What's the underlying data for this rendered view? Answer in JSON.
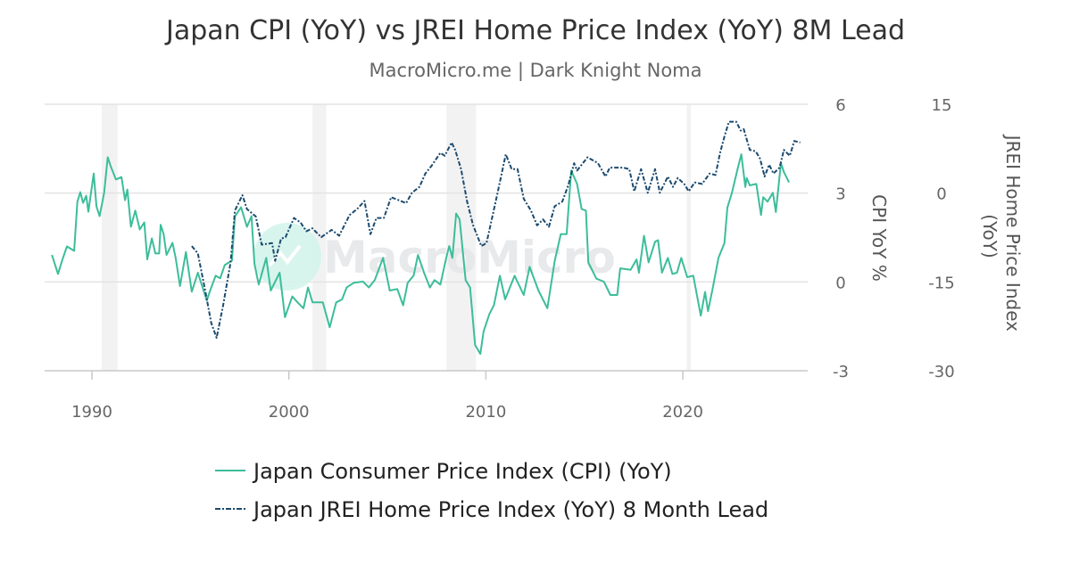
{
  "chart_data": {
    "type": "line",
    "title": "Japan CPI (YoY) vs JREI Home Price Index (YoY) 8M Lead",
    "subtitle": "MacroMicro.me | Dark Knight Noma",
    "watermark": "MacroMicro",
    "x_axis": {
      "ticks": [
        "1990",
        "2000",
        "2010",
        "2020"
      ],
      "range": [
        1987.6,
        2026.4
      ]
    },
    "y_axis_left": {
      "label": "CPI YoY %",
      "ticks": [
        "6",
        "3",
        "0",
        "-3"
      ],
      "range": [
        -3,
        6
      ]
    },
    "y_axis_right": {
      "label": "JREI Home Price Index (YoY)",
      "ticks": [
        "15",
        "0",
        "-15",
        "-30"
      ],
      "range": [
        -30,
        15
      ]
    },
    "grid": true,
    "legend_position": "bottom",
    "recession_bands": [
      [
        1990.5,
        1991.3
      ],
      [
        2001.2,
        2001.9
      ],
      [
        2008.0,
        2009.5
      ],
      [
        2020.2,
        2020.4
      ]
    ],
    "colors": {
      "cpi": "#3dbd9a",
      "jrei": "#1c4a6e",
      "band": "#f2f2f2"
    },
    "series": [
      {
        "name": "Japan Consumer Price Index (CPI) (YoY)",
        "axis": "left",
        "style": "solid",
        "points": [
          [
            1987.97,
            0.91
          ],
          [
            1988.28,
            0.27
          ],
          [
            1988.5,
            0.75
          ],
          [
            1988.73,
            1.2
          ],
          [
            1989.1,
            1.05
          ],
          [
            1989.26,
            2.71
          ],
          [
            1989.41,
            3.03
          ],
          [
            1989.55,
            2.67
          ],
          [
            1989.71,
            2.91
          ],
          [
            1989.82,
            2.37
          ],
          [
            1990.09,
            3.66
          ],
          [
            1990.23,
            2.55
          ],
          [
            1990.39,
            2.22
          ],
          [
            1990.62,
            3.01
          ],
          [
            1990.8,
            4.21
          ],
          [
            1990.95,
            3.91
          ],
          [
            1991.22,
            3.46
          ],
          [
            1991.5,
            3.54
          ],
          [
            1991.68,
            2.76
          ],
          [
            1991.8,
            3.12
          ],
          [
            1991.98,
            1.86
          ],
          [
            1992.2,
            2.41
          ],
          [
            1992.43,
            1.77
          ],
          [
            1992.66,
            2.01
          ],
          [
            1992.81,
            0.76
          ],
          [
            1993.04,
            1.47
          ],
          [
            1993.22,
            0.96
          ],
          [
            1993.41,
            0.96
          ],
          [
            1993.49,
            1.93
          ],
          [
            1993.64,
            1.62
          ],
          [
            1993.79,
            0.91
          ],
          [
            1994.09,
            1.32
          ],
          [
            1994.25,
            0.81
          ],
          [
            1994.47,
            -0.14
          ],
          [
            1994.77,
            1.01
          ],
          [
            1995.07,
            -0.33
          ],
          [
            1995.38,
            0.31
          ],
          [
            1995.83,
            -0.63
          ],
          [
            1995.98,
            -0.33
          ],
          [
            1996.28,
            0.21
          ],
          [
            1996.51,
            0.12
          ],
          [
            1996.74,
            0.57
          ],
          [
            1997.11,
            0.72
          ],
          [
            1997.26,
            2.21
          ],
          [
            1997.57,
            2.52
          ],
          [
            1997.87,
            1.86
          ],
          [
            1998.1,
            2.22
          ],
          [
            1998.25,
            0.61
          ],
          [
            1998.47,
            -0.09
          ],
          [
            1998.85,
            0.81
          ],
          [
            1999.08,
            -0.29
          ],
          [
            1999.53,
            0.31
          ],
          [
            1999.8,
            -1.19
          ],
          [
            2000.17,
            -0.49
          ],
          [
            2000.44,
            -0.69
          ],
          [
            2000.74,
            -0.89
          ],
          [
            2000.97,
            -0.19
          ],
          [
            2001.2,
            -0.69
          ],
          [
            2001.72,
            -0.69
          ],
          [
            2002.07,
            -1.53
          ],
          [
            2002.4,
            -0.69
          ],
          [
            2002.7,
            -0.59
          ],
          [
            2002.93,
            -0.19
          ],
          [
            2003.3,
            -0.03
          ],
          [
            2003.76,
            0.01
          ],
          [
            2004.06,
            -0.19
          ],
          [
            2004.36,
            0.06
          ],
          [
            2004.78,
            0.81
          ],
          [
            2005.12,
            -0.29
          ],
          [
            2005.5,
            -0.24
          ],
          [
            2005.8,
            -0.79
          ],
          [
            2006.03,
            -0.03
          ],
          [
            2006.33,
            0.21
          ],
          [
            2006.55,
            0.91
          ],
          [
            2006.86,
            0.31
          ],
          [
            2007.16,
            -0.19
          ],
          [
            2007.39,
            0.06
          ],
          [
            2007.69,
            -0.09
          ],
          [
            2007.99,
            0.81
          ],
          [
            2008.14,
            1.21
          ],
          [
            2008.3,
            0.81
          ],
          [
            2008.49,
            2.31
          ],
          [
            2008.67,
            2.11
          ],
          [
            2008.97,
            0.06
          ],
          [
            2009.2,
            -0.19
          ],
          [
            2009.45,
            -2.13
          ],
          [
            2009.72,
            -2.43
          ],
          [
            2009.88,
            -1.68
          ],
          [
            2010.18,
            -1.08
          ],
          [
            2010.41,
            -0.79
          ],
          [
            2010.71,
            0.21
          ],
          [
            2010.98,
            -0.59
          ],
          [
            2011.46,
            0.21
          ],
          [
            2011.92,
            -0.44
          ],
          [
            2012.22,
            0.51
          ],
          [
            2012.67,
            -0.29
          ],
          [
            2013.12,
            -0.89
          ],
          [
            2013.5,
            0.72
          ],
          [
            2013.8,
            1.61
          ],
          [
            2014.1,
            1.61
          ],
          [
            2014.33,
            3.76
          ],
          [
            2014.63,
            3.31
          ],
          [
            2014.86,
            2.46
          ],
          [
            2015.08,
            2.41
          ],
          [
            2015.2,
            0.66
          ],
          [
            2015.61,
            0.11
          ],
          [
            2015.99,
            0.01
          ],
          [
            2016.32,
            -0.44
          ],
          [
            2016.67,
            -0.44
          ],
          [
            2016.82,
            0.46
          ],
          [
            2017.35,
            0.41
          ],
          [
            2017.65,
            0.76
          ],
          [
            2017.77,
            0.31
          ],
          [
            2018.03,
            1.56
          ],
          [
            2018.26,
            0.66
          ],
          [
            2018.59,
            1.36
          ],
          [
            2018.74,
            1.41
          ],
          [
            2018.94,
            0.31
          ],
          [
            2019.24,
            0.81
          ],
          [
            2019.47,
            0.27
          ],
          [
            2019.7,
            0.31
          ],
          [
            2019.92,
            0.81
          ],
          [
            2020.22,
            0.16
          ],
          [
            2020.53,
            0.21
          ],
          [
            2020.91,
            -1.14
          ],
          [
            2021.13,
            -0.34
          ],
          [
            2021.28,
            -0.99
          ],
          [
            2021.51,
            -0.24
          ],
          [
            2021.81,
            0.81
          ],
          [
            2022.11,
            1.31
          ],
          [
            2022.26,
            2.51
          ],
          [
            2022.49,
            3.01
          ],
          [
            2022.76,
            3.76
          ],
          [
            2022.97,
            4.31
          ],
          [
            2023.17,
            3.21
          ],
          [
            2023.24,
            3.51
          ],
          [
            2023.4,
            3.26
          ],
          [
            2023.73,
            3.31
          ],
          [
            2023.97,
            2.26
          ],
          [
            2024.08,
            2.86
          ],
          [
            2024.3,
            2.71
          ],
          [
            2024.57,
            3.01
          ],
          [
            2024.72,
            2.36
          ],
          [
            2024.98,
            4.01
          ],
          [
            2025.13,
            3.71
          ],
          [
            2025.39,
            3.36
          ]
        ]
      },
      {
        "name": "Japan JREI Home Price Index (YoY) 8 Month Lead",
        "axis": "right",
        "style": "dash-dot",
        "points": [
          [
            1995.07,
            -8.95
          ],
          [
            1995.38,
            -10.2
          ],
          [
            1995.75,
            -16.45
          ],
          [
            1996.06,
            -21.95
          ],
          [
            1996.33,
            -24.45
          ],
          [
            1996.66,
            -18.95
          ],
          [
            1997.04,
            -11.7
          ],
          [
            1997.26,
            -2.95
          ],
          [
            1997.64,
            -0.35
          ],
          [
            1997.87,
            -2.7
          ],
          [
            1998.32,
            -3.95
          ],
          [
            1998.62,
            -8.7
          ],
          [
            1999.15,
            -8.45
          ],
          [
            1999.3,
            -11.45
          ],
          [
            1999.6,
            -7.7
          ],
          [
            1999.83,
            -7.45
          ],
          [
            2000.26,
            -4.2
          ],
          [
            2000.59,
            -4.95
          ],
          [
            2000.89,
            -6.45
          ],
          [
            2001.19,
            -5.95
          ],
          [
            2001.64,
            -7.45
          ],
          [
            2002.17,
            -6.2
          ],
          [
            2002.55,
            -7.2
          ],
          [
            2003.08,
            -3.7
          ],
          [
            2003.46,
            -2.7
          ],
          [
            2003.84,
            -1.35
          ],
          [
            2004.14,
            -6.95
          ],
          [
            2004.44,
            -4.2
          ],
          [
            2004.82,
            -4.2
          ],
          [
            2005.19,
            -0.7
          ],
          [
            2005.57,
            -1.2
          ],
          [
            2005.95,
            -1.7
          ],
          [
            2006.25,
            0.05
          ],
          [
            2006.63,
            1.05
          ],
          [
            2006.93,
            3.3
          ],
          [
            2007.23,
            4.55
          ],
          [
            2007.69,
            6.8
          ],
          [
            2007.91,
            6.3
          ],
          [
            2008.26,
            8.55
          ],
          [
            2008.44,
            7.3
          ],
          [
            2008.74,
            4.05
          ],
          [
            2009.05,
            -1.45
          ],
          [
            2009.35,
            -5.45
          ],
          [
            2009.77,
            -8.95
          ],
          [
            2010.03,
            -8.45
          ],
          [
            2010.56,
            -0.45
          ],
          [
            2011.01,
            6.55
          ],
          [
            2011.31,
            4.05
          ],
          [
            2011.61,
            4.05
          ],
          [
            2011.92,
            -0.95
          ],
          [
            2012.29,
            -2.95
          ],
          [
            2012.6,
            -5.45
          ],
          [
            2012.9,
            -4.45
          ],
          [
            2013.2,
            -5.7
          ],
          [
            2013.5,
            -2.2
          ],
          [
            2013.88,
            -1.45
          ],
          [
            2014.18,
            1.3
          ],
          [
            2014.48,
            5.05
          ],
          [
            2014.63,
            3.8
          ],
          [
            2015.16,
            6.05
          ],
          [
            2015.69,
            5.05
          ],
          [
            2016.07,
            2.8
          ],
          [
            2016.29,
            4.3
          ],
          [
            2016.97,
            4.3
          ],
          [
            2017.28,
            4.05
          ],
          [
            2017.53,
            0.3
          ],
          [
            2017.88,
            4.05
          ],
          [
            2018.22,
            0.05
          ],
          [
            2018.59,
            4.05
          ],
          [
            2018.83,
            0.05
          ],
          [
            2019.24,
            2.8
          ],
          [
            2019.5,
            1.05
          ],
          [
            2019.74,
            2.55
          ],
          [
            2020.07,
            1.55
          ],
          [
            2020.3,
            0.3
          ],
          [
            2020.6,
            1.8
          ],
          [
            2020.98,
            1.55
          ],
          [
            2021.36,
            3.3
          ],
          [
            2021.66,
            3.05
          ],
          [
            2021.89,
            6.8
          ],
          [
            2022.11,
            9.55
          ],
          [
            2022.34,
            12.05
          ],
          [
            2022.71,
            12.05
          ],
          [
            2022.94,
            10.55
          ],
          [
            2023.09,
            10.8
          ],
          [
            2023.4,
            7.3
          ],
          [
            2023.7,
            7.05
          ],
          [
            2023.92,
            5.8
          ],
          [
            2024.15,
            2.8
          ],
          [
            2024.38,
            4.8
          ],
          [
            2024.6,
            3.3
          ],
          [
            2024.91,
            4.3
          ],
          [
            2025.13,
            7.3
          ],
          [
            2025.43,
            6.3
          ],
          [
            2025.66,
            8.8
          ],
          [
            2025.96,
            8.55
          ]
        ]
      }
    ]
  }
}
